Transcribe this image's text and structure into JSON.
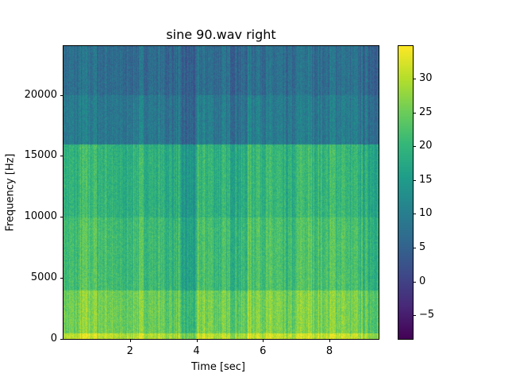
{
  "chart_data": {
    "type": "heatmap",
    "title": "sine 90.wav right",
    "xlabel": "Time [sec]",
    "ylabel": "Frequency [Hz]",
    "xlim": [
      0,
      9.48
    ],
    "ylim": [
      0,
      24000
    ],
    "xticks": [
      2,
      4,
      6,
      8
    ],
    "yticks": [
      0,
      5000,
      10000,
      15000,
      20000
    ],
    "colormap": "viridis",
    "colorbar": {
      "range": [
        -8.5,
        34.8
      ],
      "ticks": [
        -5,
        0,
        5,
        10,
        15,
        20,
        25,
        30
      ]
    },
    "grid": false,
    "time_bins_sec": [
      0.25,
      0.75,
      1.25,
      1.75,
      2.25,
      2.75,
      3.25,
      3.75,
      4.25,
      4.75,
      5.25,
      5.75,
      6.25,
      6.75,
      7.25,
      7.75,
      8.25,
      8.75,
      9.25
    ],
    "freq_bands_hz": [
      [
        0,
        500
      ],
      [
        500,
        4000
      ],
      [
        4000,
        10000
      ],
      [
        10000,
        16000
      ],
      [
        16000,
        20000
      ],
      [
        20000,
        24000
      ]
    ],
    "approx_level_db": [
      [
        30,
        25,
        21,
        19,
        9,
        7
      ],
      [
        32,
        27,
        23,
        21,
        10,
        8
      ],
      [
        31,
        26,
        22,
        20,
        9,
        7
      ],
      [
        29,
        24,
        20,
        18,
        8,
        6
      ],
      [
        31,
        26,
        22,
        20,
        10,
        7
      ],
      [
        30,
        25,
        21,
        19,
        9,
        7
      ],
      [
        29,
        24,
        20,
        18,
        8,
        6
      ],
      [
        25,
        20,
        16,
        14,
        5,
        4
      ],
      [
        31,
        26,
        22,
        20,
        10,
        7
      ],
      [
        30,
        25,
        21,
        19,
        9,
        7
      ],
      [
        29,
        24,
        20,
        18,
        8,
        6
      ],
      [
        32,
        27,
        23,
        21,
        11,
        8
      ],
      [
        31,
        26,
        22,
        20,
        9,
        7
      ],
      [
        29,
        24,
        20,
        18,
        8,
        6
      ],
      [
        32,
        27,
        23,
        21,
        10,
        8
      ],
      [
        31,
        26,
        22,
        20,
        9,
        7
      ],
      [
        32,
        27,
        23,
        21,
        10,
        8
      ],
      [
        30,
        25,
        21,
        19,
        9,
        7
      ],
      [
        29,
        24,
        20,
        18,
        8,
        6
      ]
    ]
  }
}
